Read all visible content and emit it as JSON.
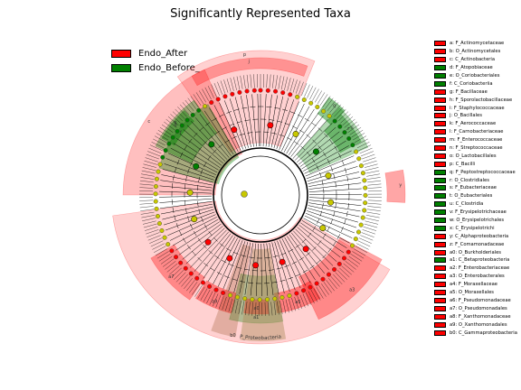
{
  "title": "Significantly Represented Taxa",
  "colors": {
    "after": "#ff0000",
    "before": "#008000",
    "node_neutral": "#c8c800"
  },
  "legend": [
    {
      "label": "Endo_After",
      "color": "#ff0000"
    },
    {
      "label": "Endo_Before_",
      "color": "#008000"
    }
  ],
  "clades": [
    {
      "id": "a",
      "label": "a: F_Actinomycetaceae",
      "group": "after"
    },
    {
      "id": "b",
      "label": "b: O_Actinomycetales",
      "group": "after"
    },
    {
      "id": "c",
      "label": "c: C_Actinobacteria",
      "group": "after"
    },
    {
      "id": "d",
      "label": "d: F_Atopobiaceae",
      "group": "before"
    },
    {
      "id": "e",
      "label": "e: O_Coriobacteriales",
      "group": "before"
    },
    {
      "id": "f",
      "label": "f: C_Coriobacteriia",
      "group": "before"
    },
    {
      "id": "g",
      "label": "g: F_Bacillaceae",
      "group": "after"
    },
    {
      "id": "h",
      "label": "h: F_Sporolactobacillaceae",
      "group": "after"
    },
    {
      "id": "i",
      "label": "i: F_Staphylococcaceae",
      "group": "after"
    },
    {
      "id": "j",
      "label": "j: O_Bacillales",
      "group": "after"
    },
    {
      "id": "k",
      "label": "k: F_Aerococcaceae",
      "group": "after"
    },
    {
      "id": "l",
      "label": "l: F_Carnobacteriaceae",
      "group": "after"
    },
    {
      "id": "m",
      "label": "m: F_Enterococcaceae",
      "group": "after"
    },
    {
      "id": "n",
      "label": "n: F_Streptococcaceae",
      "group": "after"
    },
    {
      "id": "o",
      "label": "o: O_Lactobacillales",
      "group": "after"
    },
    {
      "id": "p",
      "label": "p: C_Bacilli",
      "group": "after"
    },
    {
      "id": "q",
      "label": "q: F_Peptostreptococcaceae",
      "group": "before"
    },
    {
      "id": "r",
      "label": "r: O_Clostridiales",
      "group": "before"
    },
    {
      "id": "s",
      "label": "s: F_Eubacteriaceae",
      "group": "before"
    },
    {
      "id": "t",
      "label": "t: O_Eubacteriales",
      "group": "before"
    },
    {
      "id": "u",
      "label": "u: C_Clostridia",
      "group": "before"
    },
    {
      "id": "v",
      "label": "v: F_Erysipelotrichaceae",
      "group": "before"
    },
    {
      "id": "w",
      "label": "w: O_Erysipelotrichales",
      "group": "before"
    },
    {
      "id": "x",
      "label": "x: C_Erysipelotrichi",
      "group": "before"
    },
    {
      "id": "y",
      "label": "y: C_Alphaproteobacteria",
      "group": "after"
    },
    {
      "id": "z",
      "label": "z: F_Comamonadaceae",
      "group": "after"
    },
    {
      "id": "a0",
      "label": "a0: O_Burkholderiales",
      "group": "after"
    },
    {
      "id": "a1",
      "label": "a1: C_Betaproteobacteria",
      "group": "before"
    },
    {
      "id": "a2",
      "label": "a2: F_Enterobacteriaceae",
      "group": "after"
    },
    {
      "id": "a3",
      "label": "a3: O_Enterobacterales",
      "group": "after"
    },
    {
      "id": "a4",
      "label": "a4: F_Moraxellaceae",
      "group": "after"
    },
    {
      "id": "a5",
      "label": "a5: O_Moraxellales",
      "group": "after"
    },
    {
      "id": "a6",
      "label": "a6: F_Pseudomonadaceae",
      "group": "after"
    },
    {
      "id": "a7",
      "label": "a7: O_Pseudomonadales",
      "group": "after"
    },
    {
      "id": "a8",
      "label": "a8: F_Xanthomonadaceae",
      "group": "after"
    },
    {
      "id": "a9",
      "label": "a9: O_Xanthomonadales",
      "group": "after"
    },
    {
      "id": "b0",
      "label": "b0: C_Gammaproteobacteria",
      "group": "after"
    }
  ],
  "phylum_labels": [
    {
      "text": "P_Proteobacteria"
    }
  ]
}
